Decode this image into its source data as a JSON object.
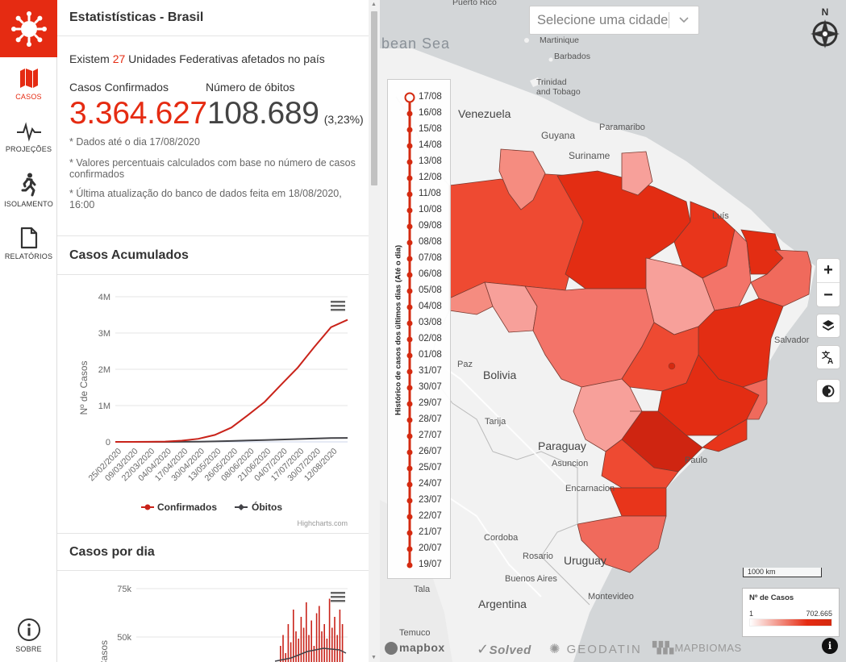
{
  "sidebar": {
    "items": [
      {
        "label": "CASOS",
        "icon": "brazil-map-icon"
      },
      {
        "label": "PROJEÇÕES",
        "icon": "pulse-icon"
      },
      {
        "label": "ISOLAMENTO",
        "icon": "walking-person-icon"
      },
      {
        "label": "RELATÓRIOS",
        "icon": "document-icon"
      }
    ],
    "about": "SOBRE",
    "accent": "#e52b12"
  },
  "stats": {
    "title": "Estatistísticas - Brasil",
    "federative_prefix": "Existem",
    "federative_count": "27",
    "federative_suffix": "Unidades Federativas afetados no país",
    "confirmed_label": "Casos Confirmados",
    "deaths_label": "Número de óbitos",
    "confirmed_value": "3.364.627",
    "deaths_value": "108.689",
    "deaths_pct": "(3,23%)",
    "note1": "* Dados até o dia 17/08/2020",
    "note2": "* Valores percentuais calculados com base no número de casos confirmados",
    "note3": "* Última atualização do banco de dados feita em 18/08/2020, 16:00"
  },
  "accumulated": {
    "title": "Casos Acumulados",
    "credit": "Highcharts.com"
  },
  "daily": {
    "title": "Casos por dia"
  },
  "chart_data": [
    {
      "type": "line",
      "ylabel": "Nº de Casos",
      "ylim": [
        0,
        4000000
      ],
      "yticks": [
        "0",
        "1M",
        "2M",
        "3M",
        "4M"
      ],
      "x": [
        "25/02/2020",
        "09/03/2020",
        "22/03/2020",
        "04/04/2020",
        "17/04/2020",
        "30/04/2020",
        "13/05/2020",
        "26/05/2020",
        "08/06/2020",
        "21/06/2020",
        "04/07/2020",
        "17/07/2020",
        "30/07/2020",
        "12/08/2020",
        "17/08/2020"
      ],
      "xticks": [
        "25/02/2020",
        "09/03/2020",
        "22/03/2020",
        "04/04/2020",
        "17/04/2020",
        "30/04/2020",
        "13/05/2020",
        "26/05/2020",
        "08/06/2020",
        "21/06/2020",
        "04/07/2020",
        "17/07/2020",
        "30/07/2020",
        "12/08/2020"
      ],
      "series": [
        {
          "name": "Confirmados",
          "color": "#c9231a",
          "values": [
            0,
            20,
            1500,
            10000,
            33000,
            85000,
            190000,
            395000,
            740000,
            1100000,
            1580000,
            2050000,
            2620000,
            3160000,
            3364627
          ]
        },
        {
          "name": "Óbitos",
          "color": "#434348",
          "values": [
            0,
            0,
            25,
            430,
            2100,
            5900,
            13200,
            24500,
            37100,
            50600,
            64300,
            77800,
            91300,
            104200,
            108689
          ]
        }
      ],
      "legend": "bottom"
    },
    {
      "type": "bar",
      "ylabel": "Casos",
      "yticks": [
        "50k",
        "75k"
      ],
      "ylim": [
        0,
        75000
      ]
    }
  ],
  "map": {
    "select_placeholder": "Selecione uma cidade",
    "compass": "N",
    "timeline_title": "Histórico de casos dos últimos dias (Até o dia)",
    "timeline_dates": [
      "17/08",
      "16/08",
      "15/08",
      "14/08",
      "13/08",
      "12/08",
      "11/08",
      "10/08",
      "09/08",
      "08/08",
      "07/08",
      "06/08",
      "05/08",
      "04/08",
      "03/08",
      "02/08",
      "01/08",
      "31/07",
      "30/07",
      "29/07",
      "28/07",
      "27/07",
      "26/07",
      "25/07",
      "24/07",
      "23/07",
      "22/07",
      "21/07",
      "20/07",
      "19/07"
    ],
    "legend_title": "Nº de Casos",
    "legend_min": "1",
    "legend_max": "702.665",
    "scale": "1000 km",
    "labels": {
      "venezuela": "Venezuela",
      "guyana": "Guyana",
      "suriname": "Suriname",
      "paramaribo": "Paramaribo",
      "bolivia": "Bolivia",
      "paraguay": "Paraguay",
      "uruguay": "Uruguay",
      "argentina": "Argentina",
      "sea": "bean Sea",
      "martinique": "Martinique",
      "barbados": "Barbados",
      "trinidad": "Trinidad\nand Tobago",
      "salvador": "Salvador",
      "tarija": "Tarija",
      "asuncion": "Asuncion",
      "encarnacion": "Encarnacion",
      "cordoba": "Cordoba",
      "rosario": "Rosario",
      "buenos_aires": "Buenos Aires",
      "montevideo": "Montevideo",
      "tala": "Tala",
      "temuco": "Temuco",
      "luis": "Luís",
      "paz": "Paz",
      "puerto_rico": "Puerto Rico",
      "paulo": "Paulo"
    },
    "attributions": [
      "mapbox",
      "Solved",
      "GEODATIN",
      "MAPBIOMAS"
    ]
  }
}
